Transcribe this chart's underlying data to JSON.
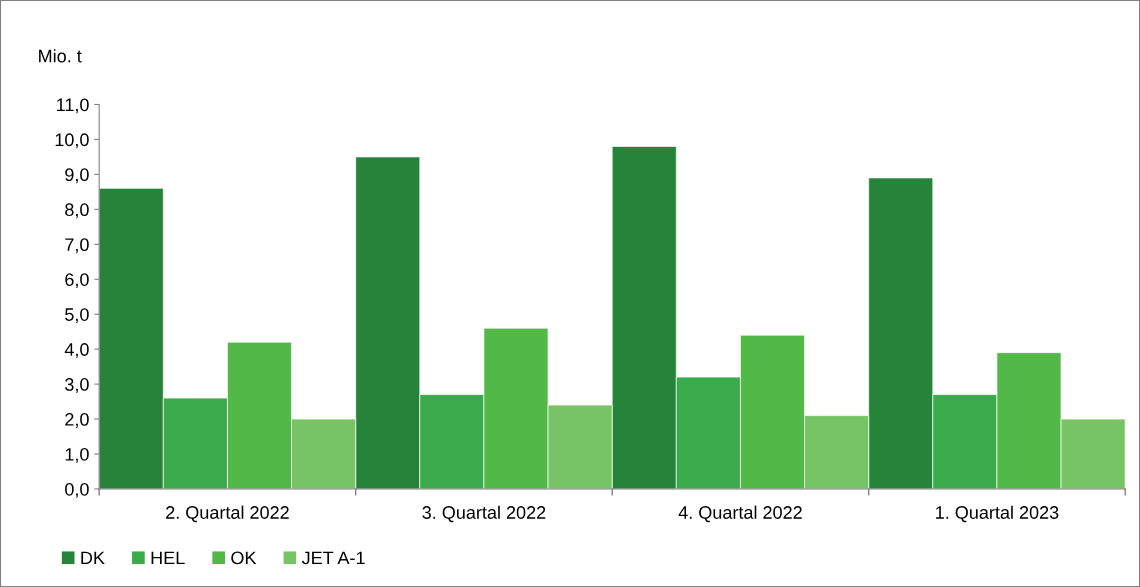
{
  "chart_data": {
    "type": "bar",
    "ylabel": "Mio. t",
    "categories": [
      "2. Quartal 2022",
      "3. Quartal 2022",
      "4. Quartal 2022",
      "1. Quartal 2023"
    ],
    "series": [
      {
        "name": "DK",
        "color": "#26843a",
        "values": [
          8.6,
          9.5,
          9.8,
          8.9
        ]
      },
      {
        "name": "HEL",
        "color": "#3aaa4a",
        "values": [
          2.6,
          2.7,
          3.2,
          2.7
        ]
      },
      {
        "name": "OK",
        "color": "#52b848",
        "values": [
          4.2,
          4.6,
          4.4,
          3.9
        ]
      },
      {
        "name": "JET A-1",
        "color": "#77c465",
        "values": [
          2.0,
          2.4,
          2.1,
          2.0
        ]
      }
    ],
    "ylim": [
      0,
      11
    ],
    "yticks": [
      {
        "value": 0,
        "label": "0,0"
      },
      {
        "value": 1,
        "label": "1,0"
      },
      {
        "value": 2,
        "label": "2,0"
      },
      {
        "value": 3,
        "label": "3,0"
      },
      {
        "value": 4,
        "label": "4,0"
      },
      {
        "value": 5,
        "label": "5,0"
      },
      {
        "value": 6,
        "label": "6,0"
      },
      {
        "value": 7,
        "label": "7,0"
      },
      {
        "value": 8,
        "label": "8,0"
      },
      {
        "value": 9,
        "label": "9,0"
      },
      {
        "value": 10,
        "label": "10,0"
      },
      {
        "value": 11,
        "label": "11,0"
      }
    ],
    "grid": false,
    "legend": "bottom left"
  }
}
